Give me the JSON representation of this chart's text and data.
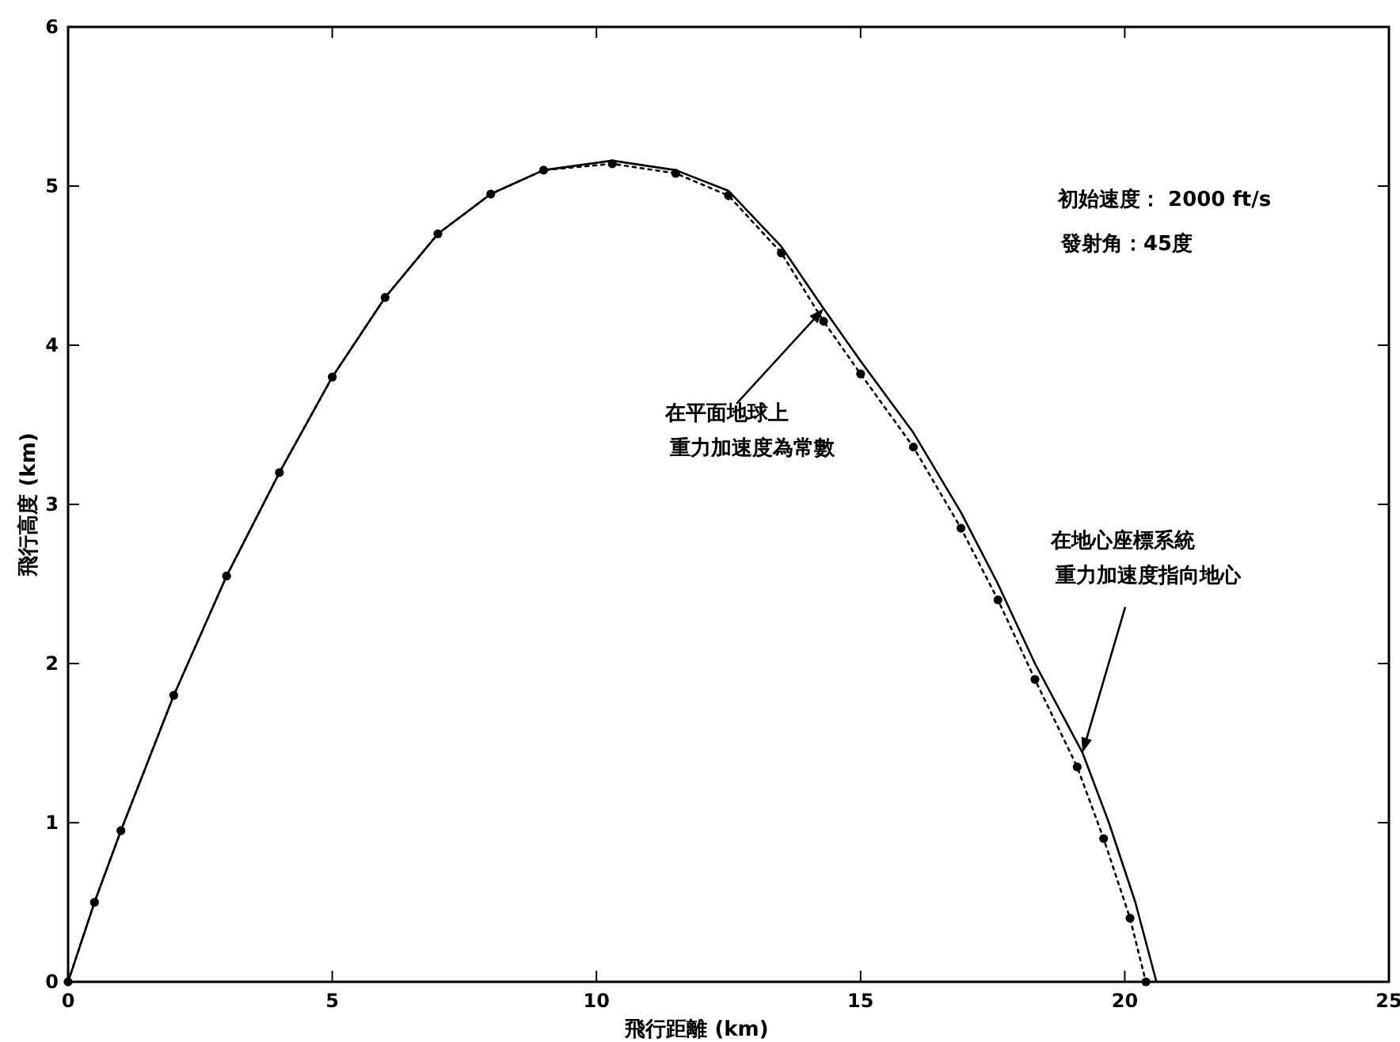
{
  "chart_data": {
    "type": "line",
    "xlabel": "飛行距離 (km)",
    "ylabel": "飛行高度 (km)",
    "xlim": [
      0,
      25
    ],
    "ylim": [
      0,
      6
    ],
    "xticks": [
      0,
      5,
      10,
      15,
      20,
      25
    ],
    "yticks": [
      0,
      1,
      2,
      3,
      4,
      5,
      6
    ],
    "grid": false,
    "series": [
      {
        "color": "#000000",
        "line_style": "solid",
        "marker": "none",
        "x": [
          0,
          0.5,
          1,
          2,
          3,
          4,
          5,
          6,
          7,
          8,
          9,
          10.3,
          11.5,
          12.5,
          13.5,
          14.3,
          15,
          16,
          16.9,
          17.6,
          18.3,
          19.2,
          19.7,
          20.2,
          20.6
        ],
        "values": [
          0,
          0.5,
          0.95,
          1.8,
          2.55,
          3.2,
          3.8,
          4.3,
          4.7,
          4.95,
          5.1,
          5.16,
          5.1,
          4.97,
          4.62,
          4.23,
          3.9,
          3.45,
          2.95,
          2.5,
          2,
          1.44,
          1,
          0.5,
          0
        ]
      },
      {
        "color": "#000000",
        "line_style": "dotted",
        "marker": "circle",
        "x": [
          0,
          0.5,
          1,
          2,
          3,
          4,
          5,
          6,
          7,
          8,
          9,
          10.3,
          11.5,
          12.5,
          13.5,
          14.3,
          15,
          16,
          16.9,
          17.6,
          18.3,
          19.1,
          19.6,
          20.1,
          20.4
        ],
        "values": [
          0,
          0.5,
          0.95,
          1.8,
          2.55,
          3.2,
          3.8,
          4.3,
          4.7,
          4.95,
          5.1,
          5.14,
          5.08,
          4.94,
          4.58,
          4.15,
          3.82,
          3.36,
          2.85,
          2.4,
          1.9,
          1.35,
          0.9,
          0.4,
          0
        ]
      }
    ],
    "annotations": [
      "初始速度： 2000 ft/s",
      "發射角：45度",
      {
        "text": "在平面地球上",
        "x": 14.3,
        "y": 4.23
      },
      "重力加速度為常數",
      "在地心座標系統",
      {
        "text": "重力加速度指向地心",
        "x": 19.2,
        "y": 1.44
      }
    ]
  }
}
